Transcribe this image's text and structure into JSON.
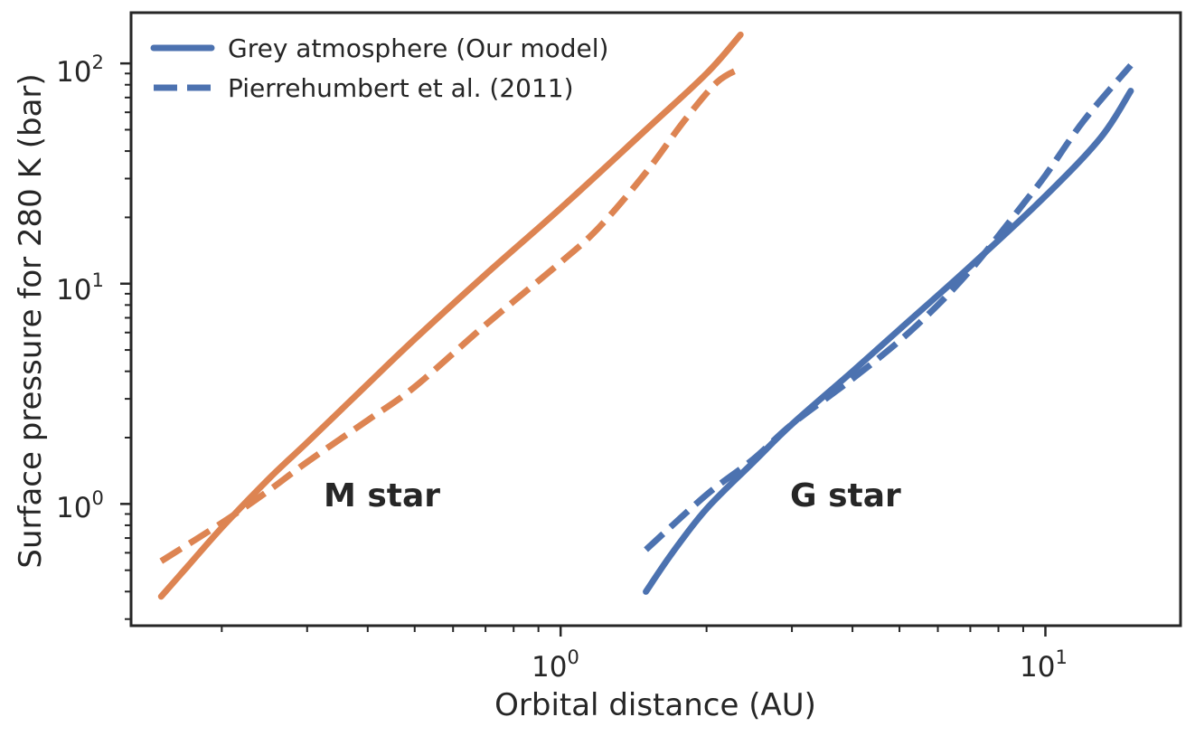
{
  "chart_data": {
    "type": "line",
    "xlabel": "Orbital distance (AU)",
    "ylabel": "Surface pressure for 280 K (bar)",
    "x_scale": "log",
    "y_scale": "log",
    "xlim": [
      0.13,
      19
    ],
    "ylim": [
      0.28,
      170
    ],
    "x_ticks": [
      {
        "base": "10",
        "exp": "0",
        "value": 1
      },
      {
        "base": "10",
        "exp": "1",
        "value": 10
      }
    ],
    "y_ticks": [
      {
        "base": "10",
        "exp": "0",
        "value": 1
      },
      {
        "base": "10",
        "exp": "1",
        "value": 10
      },
      {
        "base": "10",
        "exp": "2",
        "value": 100
      }
    ],
    "grid": false,
    "legend_position": "top-left",
    "legend": [
      {
        "label": "Grey atmosphere (Our model)",
        "style": "solid"
      },
      {
        "label": "Pierrehumbert et al. (2011)",
        "style": "dashed"
      }
    ],
    "annotations": [
      {
        "text": "M star",
        "x": 0.54,
        "y": 0.97,
        "color": "#dd8452"
      },
      {
        "text": "G star",
        "x": 5.0,
        "y": 0.97,
        "color": "#4c72b0"
      }
    ],
    "series": [
      {
        "group": "M star",
        "style": "solid",
        "color": "#dd8452",
        "x": [
          0.15,
          0.17,
          0.2,
          0.25,
          0.3,
          0.4,
          0.5,
          0.7,
          1.0,
          1.5,
          2.0,
          2.35
        ],
        "y": [
          0.38,
          0.52,
          0.78,
          1.3,
          1.9,
          3.5,
          5.6,
          11,
          22,
          50,
          90,
          135
        ]
      },
      {
        "group": "M star",
        "style": "dashed",
        "color": "#dd8452",
        "x": [
          0.15,
          0.2,
          0.25,
          0.3,
          0.4,
          0.5,
          0.7,
          1.0,
          1.2,
          1.5,
          1.8,
          2.1,
          2.35
        ],
        "y": [
          0.55,
          0.82,
          1.15,
          1.55,
          2.4,
          3.4,
          6.5,
          12.5,
          18,
          32,
          55,
          82,
          95
        ]
      },
      {
        "group": "G star",
        "style": "solid",
        "color": "#4c72b0",
        "x": [
          1.5,
          1.7,
          2.0,
          2.5,
          3.0,
          4.0,
          5.0,
          7.0,
          10.0,
          13.0,
          15.0
        ],
        "y": [
          0.4,
          0.6,
          0.95,
          1.55,
          2.3,
          4.0,
          6.2,
          12,
          25,
          46,
          75
        ]
      },
      {
        "group": "G star",
        "style": "dashed",
        "color": "#4c72b0",
        "x": [
          1.5,
          2.0,
          2.5,
          3.0,
          4.0,
          5.0,
          6.0,
          7.0,
          8.0,
          9.0,
          10.0,
          12.0,
          15.0
        ],
        "y": [
          0.62,
          1.1,
          1.6,
          2.3,
          3.7,
          5.5,
          8.0,
          11.5,
          16.5,
          23,
          31,
          55,
          98
        ]
      }
    ]
  }
}
